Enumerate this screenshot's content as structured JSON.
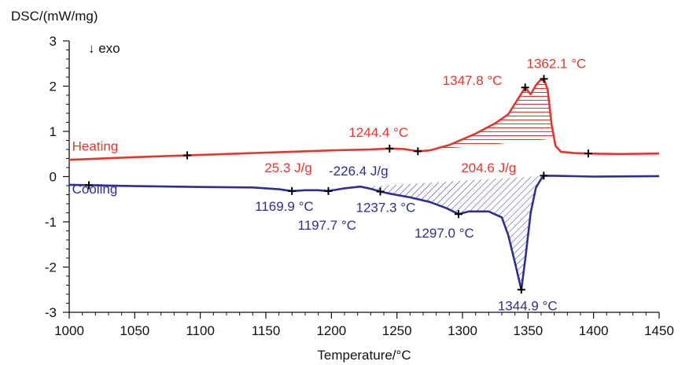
{
  "chart_data": {
    "type": "line",
    "title": "",
    "xlabel": "Temperature/°C",
    "ylabel": "DSC/(mW/mg)",
    "xlim": [
      1000,
      1450
    ],
    "ylim": [
      -3,
      3
    ],
    "xticks": [
      1000,
      1050,
      1100,
      1150,
      1200,
      1250,
      1300,
      1350,
      1400,
      1450
    ],
    "yticks": [
      3,
      2,
      1,
      0,
      -1,
      -2,
      -3
    ],
    "grid": false,
    "exo_label": "↓ exo",
    "series": [
      {
        "name": "Heating",
        "color": "#e8352b",
        "x": [
          1000,
          1050,
          1100,
          1150,
          1200,
          1230,
          1244.4,
          1255,
          1266,
          1275,
          1290,
          1310,
          1325,
          1335,
          1343,
          1347.8,
          1352,
          1356,
          1359,
          1362.1,
          1365,
          1368,
          1371,
          1375,
          1385,
          1396,
          1420,
          1450
        ],
        "y": [
          0.37,
          0.43,
          0.48,
          0.53,
          0.58,
          0.6,
          0.62,
          0.61,
          0.56,
          0.58,
          0.7,
          0.95,
          1.18,
          1.38,
          1.75,
          1.97,
          1.82,
          2.02,
          2.12,
          2.16,
          1.92,
          1.15,
          0.68,
          0.55,
          0.52,
          0.51,
          0.5,
          0.51
        ]
      },
      {
        "name": "Cooling",
        "color": "#2e2e94",
        "x": [
          1000,
          1015,
          1050,
          1100,
          1140,
          1160,
          1169.9,
          1180,
          1190,
          1197.7,
          1210,
          1222,
          1230,
          1237.3,
          1245,
          1260,
          1275,
          1288,
          1297.0,
          1305,
          1320,
          1330,
          1335,
          1340,
          1344.9,
          1348,
          1352,
          1356,
          1360,
          1362,
          1370,
          1400,
          1450
        ],
        "y": [
          -0.18,
          -0.19,
          -0.21,
          -0.23,
          -0.24,
          -0.28,
          -0.32,
          -0.3,
          -0.3,
          -0.32,
          -0.26,
          -0.22,
          -0.27,
          -0.33,
          -0.38,
          -0.46,
          -0.56,
          -0.7,
          -0.83,
          -0.77,
          -0.77,
          -0.9,
          -1.3,
          -1.9,
          -2.5,
          -1.8,
          -0.8,
          -0.25,
          -0.05,
          0.02,
          0.02,
          0.0,
          0.01
        ]
      }
    ],
    "peak_annotations": [
      {
        "label": "1362.1 °C",
        "x": 1362.1,
        "y": 2.16,
        "series": "Heating"
      },
      {
        "label": "1347.8 °C",
        "x": 1347.8,
        "y": 1.97,
        "series": "Heating"
      },
      {
        "label": "1244.4 °C",
        "x": 1244.4,
        "y": 0.62,
        "series": "Heating"
      },
      {
        "label": "1169.9 °C",
        "x": 1169.9,
        "y": -0.32,
        "series": "Cooling"
      },
      {
        "label": "1197.7 °C",
        "x": 1197.7,
        "y": -0.32,
        "series": "Cooling"
      },
      {
        "label": "1237.3 °C",
        "x": 1237.3,
        "y": -0.33,
        "series": "Cooling"
      },
      {
        "label": "1297.0 °C",
        "x": 1297.0,
        "y": -0.83,
        "series": "Cooling"
      },
      {
        "label": "1344.9 °C",
        "x": 1344.9,
        "y": -2.5,
        "series": "Cooling"
      }
    ],
    "extra_markers": [
      {
        "x": 1090,
        "series": "Heating"
      },
      {
        "x": 1266,
        "series": "Heating"
      },
      {
        "x": 1396,
        "series": "Heating"
      },
      {
        "x": 1015,
        "series": "Cooling"
      },
      {
        "x": 1362,
        "series": "Cooling"
      }
    ],
    "area_labels": [
      {
        "label": "25.3 J/g",
        "series": "Heating",
        "range": [
          1090,
          1266
        ]
      },
      {
        "label": "204.6 J/g",
        "series": "Heating",
        "range": [
          1266,
          1396
        ]
      },
      {
        "label": "-226.4 J/g",
        "series": "Cooling",
        "range": [
          1169.9,
          1362
        ]
      }
    ]
  }
}
